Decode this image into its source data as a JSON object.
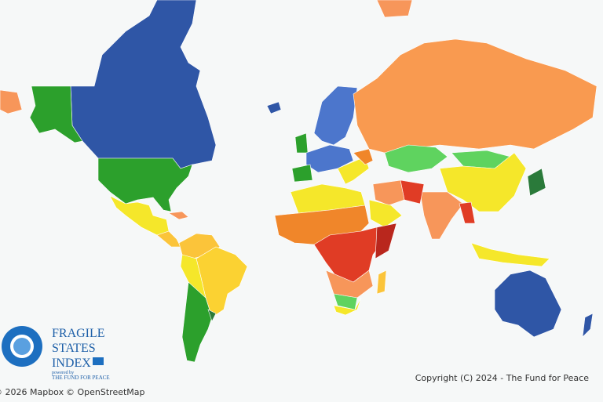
{
  "logo": {
    "title_lines": [
      "FRAGILE",
      "STATES",
      "INDEX"
    ],
    "powered_by": "powered by",
    "org": "THE FUND FOR PEACE"
  },
  "attribution": {
    "mapbox": "© 2026 Mapbox",
    "osm": "© OpenStreetMap"
  },
  "copyright": "Copyright (C) 2024 - The Fund for Peace"
}
